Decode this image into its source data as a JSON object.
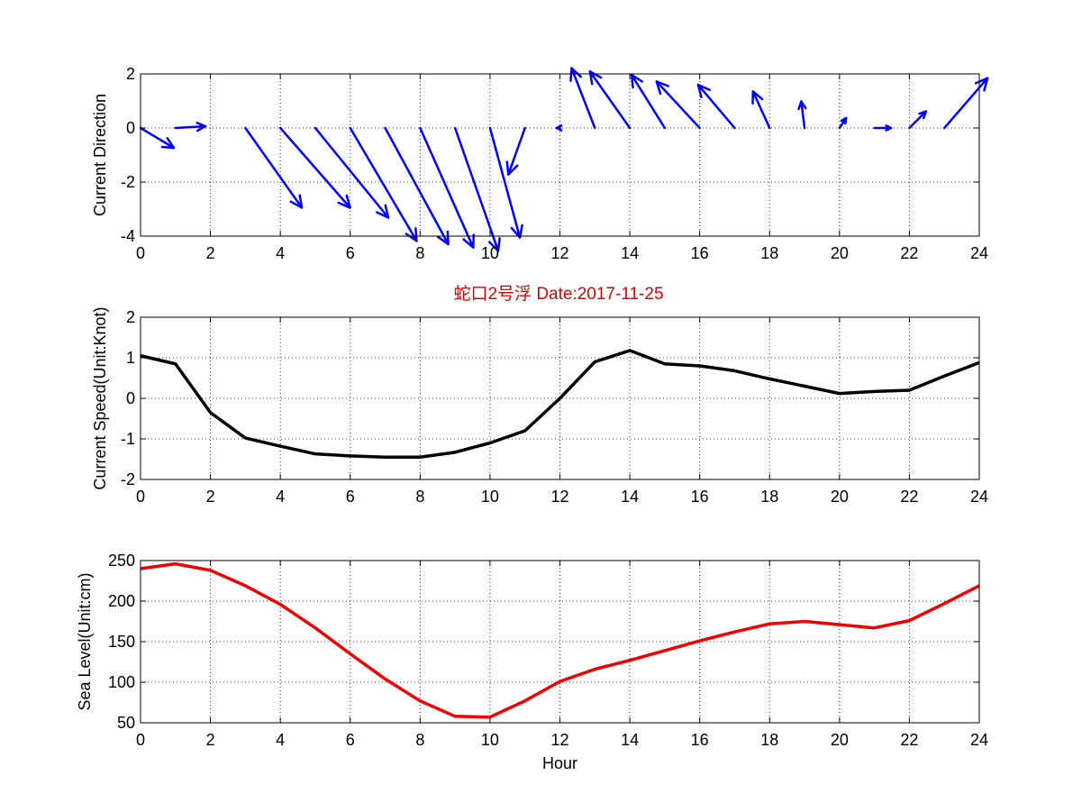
{
  "figure": {
    "title": "蛇口2号浮   Date:2017-11-25",
    "title_color": "#dd0000",
    "background": "#ffffff"
  },
  "chart_data": [
    {
      "type": "quiver",
      "ylabel": "Current Direction",
      "xlabel": "",
      "xlim": [
        0,
        24
      ],
      "ylim": [
        -4,
        2
      ],
      "xticks": [
        "0",
        "2",
        "4",
        "6",
        "8",
        "10",
        "12",
        "14",
        "16",
        "18",
        "20",
        "22",
        "24"
      ],
      "yticks": [
        "-4",
        "-2",
        "0",
        "2"
      ],
      "grid": true,
      "color": "#0000ff",
      "x": [
        0,
        1,
        3,
        4,
        5,
        6,
        7,
        8,
        9,
        10,
        11,
        12,
        13,
        14,
        15,
        16,
        17,
        18,
        19,
        20,
        21,
        22,
        23
      ],
      "u": [
        1.0,
        0.9,
        1.7,
        2.1,
        2.2,
        2.0,
        1.9,
        1.6,
        1.3,
        0.9,
        -0.5,
        -0.1,
        -0.7,
        -1.2,
        -1.0,
        -1.3,
        -1.1,
        -0.5,
        -0.1,
        0.2,
        0.5,
        0.5,
        1.3
      ],
      "v": [
        -0.6,
        0.05,
        -2.4,
        -2.4,
        -2.7,
        -3.4,
        -3.5,
        -3.6,
        -3.7,
        -3.3,
        -1.4,
        0,
        1.8,
        1.7,
        1.6,
        1.4,
        1.3,
        1.1,
        0.8,
        0.3,
        0,
        0.5,
        1.5
      ]
    },
    {
      "type": "line",
      "ylabel": "Current Speed(Unit:Knot)",
      "xlabel": "",
      "xlim": [
        0,
        24
      ],
      "ylim": [
        -2,
        2
      ],
      "xticks": [
        "0",
        "2",
        "4",
        "6",
        "8",
        "10",
        "12",
        "14",
        "16",
        "18",
        "20",
        "22",
        "24"
      ],
      "yticks": [
        "-2",
        "-1",
        "0",
        "1",
        "2"
      ],
      "grid": true,
      "color": "#000000",
      "x": [
        0,
        1,
        2,
        3,
        4,
        5,
        6,
        7,
        8,
        9,
        10,
        11,
        12,
        13,
        14,
        15,
        16,
        17,
        18,
        19,
        20,
        21,
        22,
        23,
        24
      ],
      "values": [
        1.05,
        0.85,
        -0.35,
        -0.98,
        -1.18,
        -1.37,
        -1.42,
        -1.45,
        -1.45,
        -1.33,
        -1.1,
        -0.8,
        0.0,
        0.9,
        1.18,
        0.85,
        0.8,
        0.68,
        0.48,
        0.3,
        0.12,
        0.17,
        0.2,
        0.55,
        0.88
      ]
    },
    {
      "type": "line",
      "ylabel": "Sea Level(Unit:cm)",
      "xlabel": "Hour",
      "xlim": [
        0,
        24
      ],
      "ylim": [
        50,
        250
      ],
      "xticks": [
        "0",
        "2",
        "4",
        "6",
        "8",
        "10",
        "12",
        "14",
        "16",
        "18",
        "20",
        "22",
        "24"
      ],
      "yticks": [
        "50",
        "100",
        "150",
        "200",
        "250"
      ],
      "grid": true,
      "color": "#ee0000",
      "x": [
        0,
        1,
        2,
        3,
        4,
        5,
        6,
        7,
        8,
        9,
        10,
        11,
        12,
        13,
        14,
        15,
        16,
        17,
        18,
        19,
        20,
        21,
        22,
        23,
        24
      ],
      "values": [
        240,
        246,
        238,
        219,
        196,
        167,
        135,
        104,
        77,
        58,
        57,
        77,
        101,
        116,
        127,
        139,
        151,
        162,
        172,
        175,
        171,
        167,
        176,
        197,
        219
      ]
    }
  ]
}
